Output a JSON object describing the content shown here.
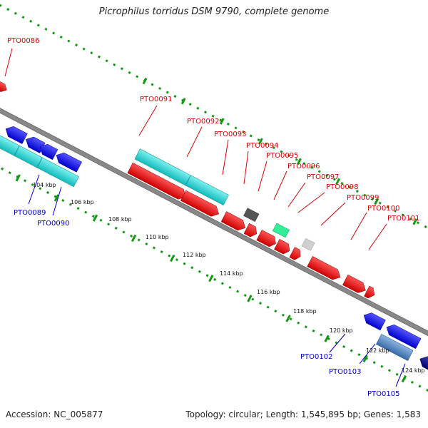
{
  "title": "Picrophilus torridus DSM 9790, complete genome",
  "footer": {
    "accession": "Accession: NC_005877",
    "stats": "Topology: circular; Length: 1,545,895 bp; Genes: 1,583"
  },
  "colors": {
    "forward_gene": "#ee0000",
    "reverse_gene": "#1a1aee",
    "cds_band": "#22cccc",
    "backbone": "#888888",
    "ticks": "#119911",
    "label_forward": "#dd0000",
    "label_reverse": "#0000cc"
  },
  "scale_labels": [
    "104 kbp",
    "106 kbp",
    "108 kbp",
    "110 kbp",
    "112 kbp",
    "114 kbp",
    "116 kbp",
    "118 kbp",
    "120 kbp",
    "122 kbp",
    "124 kbp"
  ],
  "gene_labels_forward": [
    "PTO0086",
    "PTO0091",
    "PTO0092",
    "PTO0093",
    "PTO0094",
    "PTO0095",
    "PTO0096",
    "PTO0097",
    "PTO0098",
    "PTO0099",
    "PTO0100",
    "PTO0101"
  ],
  "gene_labels_reverse": [
    "PTO0089",
    "PTO0090",
    "PTO0102",
    "PTO0103",
    "PTO0105"
  ]
}
